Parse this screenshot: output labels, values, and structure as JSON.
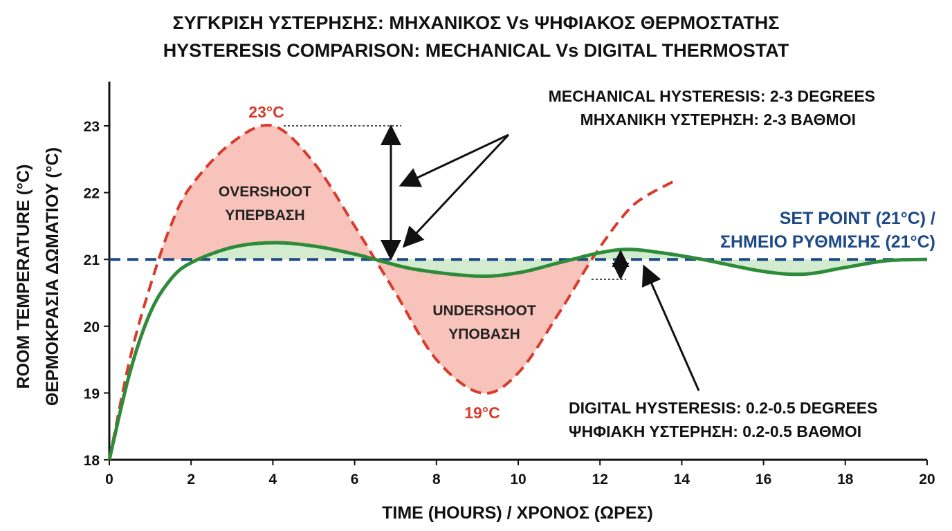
{
  "chart_data": {
    "type": "line",
    "title": "ΣΥΓΚΡΙΣΗ ΥΣΤΕΡΗΣΗΣ: ΜΗΧΑΝΙΚΟΣ Vs ΨΗΦΙΑΚΟΣ ΘΕΡΜΟΣΤΑΤΗΣ",
    "subtitle": "HYSTERESIS COMPARISON: MECHANICAL Vs DIGITAL THERMOSTAT",
    "xlabel": "TIME (HOURS) / ΧΡΟΝΟΣ (ΩΡΕΣ)",
    "ylabel": [
      "ROOM TEMPERATURE (°C)",
      "ΘΕΡΜΟΚΡΑΣΙΑ ΔΩΜΑΤΙΟΥ (°C)"
    ],
    "xlim": [
      0,
      20
    ],
    "ylim": [
      18,
      23.7
    ],
    "xticks": [
      "0",
      "2",
      "4",
      "6",
      "8",
      "10",
      "12",
      "14",
      "16",
      "18",
      "20"
    ],
    "yticks": [
      "18",
      "19",
      "20",
      "21",
      "22",
      "23"
    ],
    "grid": false,
    "setpoint": {
      "value": 21,
      "label": [
        "SET POINT (21°C) /",
        "ΣΗΜΕΙΟ ΡΥΘΜΙΣΗΣ (21°C)"
      ],
      "color": "#1c4a86"
    },
    "series": [
      {
        "name": "Mechanical",
        "color": "#d93a2b",
        "style": "dashed",
        "x": [
          0,
          0.5,
          1,
          1.5,
          2,
          3,
          4,
          5,
          6,
          6.5,
          7,
          8,
          9.1,
          10,
          11,
          11.8,
          12.5,
          13,
          13.9
        ],
        "y": [
          18,
          19.5,
          20.6,
          21.5,
          22.1,
          22.75,
          23,
          22.45,
          21.5,
          21,
          20.5,
          19.5,
          19,
          19.3,
          20.2,
          21,
          21.6,
          21.9,
          22.2
        ]
      },
      {
        "name": "Digital",
        "color": "#2e8b3a",
        "style": "solid",
        "x": [
          0,
          0.5,
          1,
          1.5,
          2,
          3,
          4,
          5,
          6,
          6.5,
          7.5,
          9,
          10,
          11,
          12,
          12.7,
          13.5,
          14.5,
          16,
          17,
          18,
          19,
          20
        ],
        "y": [
          18,
          19.3,
          20.2,
          20.7,
          20.95,
          21.18,
          21.25,
          21.2,
          21.08,
          21,
          20.85,
          20.75,
          20.8,
          20.95,
          21.1,
          21.15,
          21.1,
          21,
          20.82,
          20.78,
          20.88,
          20.98,
          21
        ]
      }
    ],
    "annotations": {
      "peak_label": "23°C",
      "trough_label": "19°C",
      "overshoot": [
        "OVERSHOOT",
        "ΥΠΕΡΒΑΣΗ"
      ],
      "undershoot": [
        "UNDERSHOOT",
        "ΥΠΟΒΑΣΗ"
      ],
      "mechanical": [
        "MECHANICAL HYSTERESIS: 2-3 DEGREES",
        "ΜΗΧΑΝΙΚΗ ΥΣΤΕΡΗΣΗ: 2-3 ΒΑΘΜΟΙ"
      ],
      "digital": [
        "DIGITAL HYSTERESIS: 0.2-0.5 DEGREES",
        "ΨΗΦΙΑΚΗ ΥΣΤΕΡΗΣΗ: 0.2-0.5 ΒΑΘΜΟΙ"
      ]
    }
  }
}
